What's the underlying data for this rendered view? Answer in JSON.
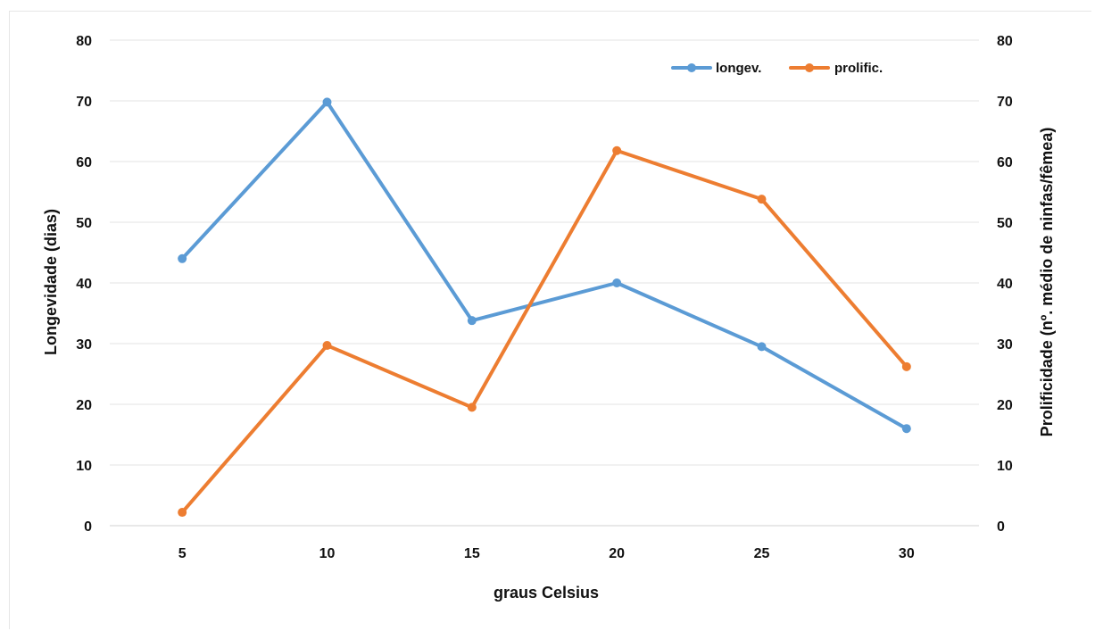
{
  "chart_data": {
    "type": "line",
    "title": "",
    "xlabel": "graus Celsius",
    "ylabel": "Longevidade (dias)",
    "y2label": "Prolificidade (nº. médio de ninfas/fêmea)",
    "categories": [
      "5",
      "10",
      "15",
      "20",
      "25",
      "30"
    ],
    "ylim": [
      0,
      80
    ],
    "y2lim": [
      0,
      80
    ],
    "yticks": [
      "0",
      "10",
      "20",
      "30",
      "40",
      "50",
      "60",
      "70",
      "80"
    ],
    "y2ticks": [
      "0",
      "10",
      "20",
      "30",
      "40",
      "50",
      "60",
      "70",
      "80"
    ],
    "grid": true,
    "legend_position": "top-right",
    "series": [
      {
        "name": "longev.",
        "axis": "left",
        "color": "#5b9bd5",
        "values": [
          44,
          69.8,
          33.8,
          40,
          29.5,
          16
        ]
      },
      {
        "name": "prolific.",
        "axis": "right",
        "color": "#ed7d31",
        "values": [
          2.2,
          29.7,
          19.5,
          61.8,
          53.8,
          26.2
        ]
      }
    ]
  }
}
